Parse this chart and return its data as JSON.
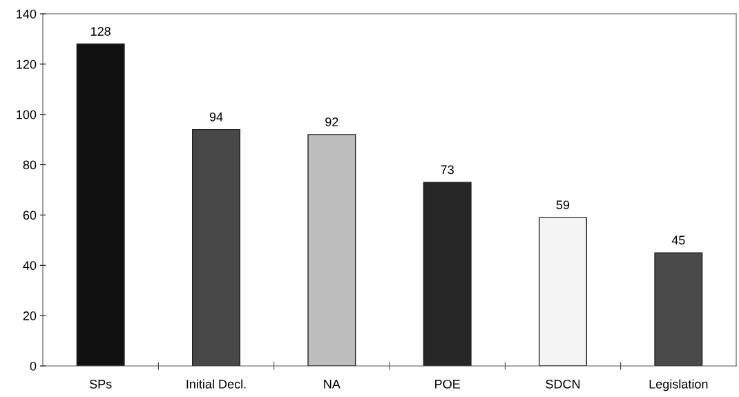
{
  "chart_data": {
    "type": "bar",
    "categories": [
      "SPs",
      "Initial Decl.",
      "NA",
      "POE",
      "SDCN",
      "Legislation"
    ],
    "values": [
      128,
      94,
      92,
      73,
      59,
      45
    ],
    "colors": [
      "#111111",
      "#484848",
      "#bdbdbd",
      "#262626",
      "#f4f4f4",
      "#4a4a4a"
    ],
    "ylim": [
      0,
      140
    ],
    "yticks": [
      0,
      20,
      40,
      60,
      80,
      100,
      120,
      140
    ],
    "data_labels": true,
    "grid": false,
    "legend": false
  }
}
